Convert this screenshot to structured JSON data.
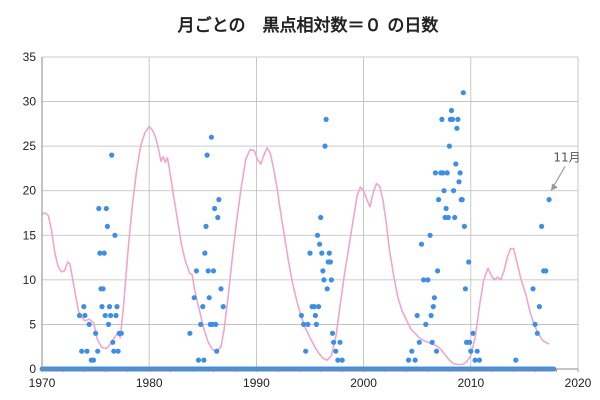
{
  "chart_data": {
    "type": "scatter",
    "title": "月ごとの　黒点相対数＝０ の日数",
    "xlabel": "",
    "ylabel": "",
    "xlim": [
      1970,
      2020
    ],
    "ylim": [
      0,
      35
    ],
    "x_ticks": [
      1970,
      1980,
      1990,
      2000,
      2010,
      2020
    ],
    "y_ticks": [
      0,
      5,
      10,
      15,
      20,
      25,
      30,
      35
    ],
    "grid": true,
    "legend": "none",
    "colors": {
      "points": "#3d8fe6",
      "line": "#f0a6cc",
      "grid": "#bbbbbb",
      "axis": "#888888"
    },
    "series": [
      {
        "type": "scatter",
        "points": [
          [
            1973.5,
            6
          ],
          [
            1973.7,
            2
          ],
          [
            1973.9,
            7
          ],
          [
            1974.0,
            6
          ],
          [
            1974.2,
            2
          ],
          [
            1974.4,
            5
          ],
          [
            1974.6,
            1
          ],
          [
            1974.8,
            1
          ],
          [
            1975.0,
            4
          ],
          [
            1975.2,
            2
          ],
          [
            1975.3,
            18
          ],
          [
            1975.4,
            13
          ],
          [
            1975.5,
            9
          ],
          [
            1975.6,
            7
          ],
          [
            1975.7,
            9
          ],
          [
            1975.8,
            13
          ],
          [
            1975.9,
            6
          ],
          [
            1976.0,
            18
          ],
          [
            1976.1,
            16
          ],
          [
            1976.2,
            5
          ],
          [
            1976.3,
            7
          ],
          [
            1976.4,
            6
          ],
          [
            1976.5,
            24
          ],
          [
            1976.6,
            3
          ],
          [
            1976.7,
            2
          ],
          [
            1976.8,
            15
          ],
          [
            1976.9,
            6
          ],
          [
            1977.0,
            7
          ],
          [
            1977.1,
            2
          ],
          [
            1977.2,
            4
          ],
          [
            1977.4,
            4
          ],
          [
            1983.8,
            4
          ],
          [
            1984.2,
            8
          ],
          [
            1984.4,
            11
          ],
          [
            1984.6,
            1
          ],
          [
            1984.8,
            5
          ],
          [
            1985.0,
            7
          ],
          [
            1985.1,
            1
          ],
          [
            1985.2,
            13
          ],
          [
            1985.3,
            16
          ],
          [
            1985.4,
            24
          ],
          [
            1985.5,
            11
          ],
          [
            1985.6,
            8
          ],
          [
            1985.7,
            5
          ],
          [
            1985.8,
            26
          ],
          [
            1985.9,
            5
          ],
          [
            1986.0,
            11
          ],
          [
            1986.1,
            18
          ],
          [
            1986.2,
            5
          ],
          [
            1986.3,
            2
          ],
          [
            1986.4,
            17
          ],
          [
            1986.5,
            19
          ],
          [
            1986.7,
            9
          ],
          [
            1986.9,
            7
          ],
          [
            1994.2,
            6
          ],
          [
            1994.4,
            5
          ],
          [
            1994.6,
            2
          ],
          [
            1994.8,
            5
          ],
          [
            1995.0,
            13
          ],
          [
            1995.2,
            7
          ],
          [
            1995.4,
            7
          ],
          [
            1995.5,
            6
          ],
          [
            1995.6,
            5
          ],
          [
            1995.7,
            15
          ],
          [
            1995.8,
            7
          ],
          [
            1995.9,
            14
          ],
          [
            1996.0,
            17
          ],
          [
            1996.1,
            13
          ],
          [
            1996.2,
            11
          ],
          [
            1996.3,
            10
          ],
          [
            1996.4,
            25
          ],
          [
            1996.5,
            28
          ],
          [
            1996.6,
            9
          ],
          [
            1996.7,
            12
          ],
          [
            1996.8,
            13
          ],
          [
            1996.9,
            12
          ],
          [
            1997.0,
            10
          ],
          [
            1997.1,
            4
          ],
          [
            1997.2,
            3
          ],
          [
            1997.4,
            2
          ],
          [
            1997.6,
            1
          ],
          [
            1997.8,
            3
          ],
          [
            1998.0,
            1
          ],
          [
            2004.2,
            1
          ],
          [
            2004.5,
            2
          ],
          [
            2004.8,
            1
          ],
          [
            2005.0,
            6
          ],
          [
            2005.2,
            3
          ],
          [
            2005.4,
            14
          ],
          [
            2005.6,
            10
          ],
          [
            2005.8,
            5
          ],
          [
            2006.0,
            10
          ],
          [
            2006.2,
            15
          ],
          [
            2006.3,
            6
          ],
          [
            2006.4,
            3
          ],
          [
            2006.5,
            7
          ],
          [
            2006.6,
            8
          ],
          [
            2006.7,
            22
          ],
          [
            2006.8,
            2
          ],
          [
            2006.9,
            11
          ],
          [
            2007.0,
            19
          ],
          [
            2007.2,
            22
          ],
          [
            2007.3,
            28
          ],
          [
            2007.4,
            22
          ],
          [
            2007.5,
            20
          ],
          [
            2007.6,
            17
          ],
          [
            2007.7,
            18
          ],
          [
            2007.8,
            22
          ],
          [
            2007.9,
            17
          ],
          [
            2008.0,
            25
          ],
          [
            2008.1,
            28
          ],
          [
            2008.2,
            29
          ],
          [
            2008.3,
            28
          ],
          [
            2008.4,
            20
          ],
          [
            2008.5,
            17
          ],
          [
            2008.6,
            23
          ],
          [
            2008.7,
            27
          ],
          [
            2008.8,
            28
          ],
          [
            2008.9,
            21
          ],
          [
            2009.0,
            22
          ],
          [
            2009.1,
            19
          ],
          [
            2009.2,
            19
          ],
          [
            2009.3,
            31
          ],
          [
            2009.4,
            16
          ],
          [
            2009.5,
            9
          ],
          [
            2009.6,
            3
          ],
          [
            2009.7,
            3
          ],
          [
            2009.8,
            12
          ],
          [
            2009.9,
            3
          ],
          [
            2010.0,
            2
          ],
          [
            2010.2,
            4
          ],
          [
            2010.4,
            1
          ],
          [
            2010.6,
            2
          ],
          [
            2010.8,
            1
          ],
          [
            2014.2,
            1
          ],
          [
            2015.8,
            9
          ],
          [
            2016.0,
            5
          ],
          [
            2016.2,
            4
          ],
          [
            2016.4,
            7
          ],
          [
            2016.6,
            16
          ],
          [
            2016.8,
            11
          ],
          [
            2017.0,
            11
          ],
          [
            2017.3,
            19
          ]
        ]
      },
      {
        "type": "line",
        "points": [
          [
            1970.0,
            17.4
          ],
          [
            1970.3,
            17.5
          ],
          [
            1970.6,
            17.2
          ],
          [
            1970.9,
            15.5
          ],
          [
            1971.2,
            13.0
          ],
          [
            1971.5,
            11.5
          ],
          [
            1971.8,
            10.9
          ],
          [
            1972.1,
            11.0
          ],
          [
            1972.4,
            12.0
          ],
          [
            1972.6,
            11.8
          ],
          [
            1972.8,
            10.5
          ],
          [
            1973.1,
            8.5
          ],
          [
            1973.4,
            6.5
          ],
          [
            1973.7,
            5.8
          ],
          [
            1974.0,
            5.4
          ],
          [
            1974.4,
            5.6
          ],
          [
            1974.8,
            5.2
          ],
          [
            1975.2,
            3.2
          ],
          [
            1975.6,
            2.4
          ],
          [
            1976.0,
            2.3
          ],
          [
            1976.4,
            2.8
          ],
          [
            1976.8,
            3.6
          ],
          [
            1977.1,
            4.0
          ],
          [
            1977.3,
            3.5
          ],
          [
            1977.6,
            7.0
          ],
          [
            1978.0,
            13.0
          ],
          [
            1978.4,
            18.0
          ],
          [
            1978.8,
            22.0
          ],
          [
            1979.2,
            25.0
          ],
          [
            1979.6,
            26.5
          ],
          [
            1980.0,
            27.2
          ],
          [
            1980.3,
            26.8
          ],
          [
            1980.6,
            26.0
          ],
          [
            1980.9,
            24.5
          ],
          [
            1981.1,
            23.3
          ],
          [
            1981.3,
            23.8
          ],
          [
            1981.5,
            23.2
          ],
          [
            1981.7,
            23.7
          ],
          [
            1981.9,
            22.3
          ],
          [
            1982.2,
            20.0
          ],
          [
            1982.6,
            17.0
          ],
          [
            1983.0,
            14.0
          ],
          [
            1983.4,
            12.0
          ],
          [
            1983.8,
            10.7
          ],
          [
            1984.0,
            10.6
          ],
          [
            1984.3,
            8.5
          ],
          [
            1984.7,
            6.5
          ],
          [
            1985.1,
            4.5
          ],
          [
            1985.5,
            3.0
          ],
          [
            1985.9,
            2.2
          ],
          [
            1986.3,
            2.0
          ],
          [
            1986.7,
            2.5
          ],
          [
            1987.0,
            4.5
          ],
          [
            1987.4,
            8.5
          ],
          [
            1987.8,
            13.0
          ],
          [
            1988.2,
            17.0
          ],
          [
            1988.6,
            20.5
          ],
          [
            1989.0,
            23.5
          ],
          [
            1989.4,
            24.6
          ],
          [
            1989.8,
            24.5
          ],
          [
            1990.1,
            23.5
          ],
          [
            1990.4,
            23.0
          ],
          [
            1990.7,
            24.0
          ],
          [
            1991.0,
            24.8
          ],
          [
            1991.3,
            24.2
          ],
          [
            1991.6,
            22.5
          ],
          [
            1991.9,
            20.5
          ],
          [
            1992.2,
            18.0
          ],
          [
            1992.6,
            15.0
          ],
          [
            1993.0,
            12.0
          ],
          [
            1993.4,
            9.5
          ],
          [
            1993.8,
            7.5
          ],
          [
            1994.2,
            5.8
          ],
          [
            1994.6,
            4.5
          ],
          [
            1995.0,
            3.5
          ],
          [
            1995.4,
            2.6
          ],
          [
            1995.8,
            1.8
          ],
          [
            1996.2,
            1.2
          ],
          [
            1996.6,
            1.0
          ],
          [
            1997.0,
            1.5
          ],
          [
            1997.4,
            3.5
          ],
          [
            1997.8,
            7.0
          ],
          [
            1998.2,
            10.5
          ],
          [
            1998.6,
            13.5
          ],
          [
            1999.0,
            16.5
          ],
          [
            1999.4,
            19.5
          ],
          [
            1999.7,
            20.4
          ],
          [
            2000.0,
            20.0
          ],
          [
            2000.3,
            19.0
          ],
          [
            2000.6,
            18.2
          ],
          [
            2000.9,
            19.8
          ],
          [
            2001.2,
            20.8
          ],
          [
            2001.5,
            20.5
          ],
          [
            2001.8,
            19.0
          ],
          [
            2002.1,
            16.5
          ],
          [
            2002.4,
            13.5
          ],
          [
            2002.8,
            10.5
          ],
          [
            2003.2,
            8.0
          ],
          [
            2003.6,
            6.5
          ],
          [
            2004.0,
            5.5
          ],
          [
            2004.4,
            4.5
          ],
          [
            2004.8,
            4.0
          ],
          [
            2005.2,
            3.5
          ],
          [
            2005.6,
            3.2
          ],
          [
            2006.0,
            3.0
          ],
          [
            2006.4,
            2.8
          ],
          [
            2006.8,
            2.6
          ],
          [
            2007.2,
            2.2
          ],
          [
            2007.6,
            1.6
          ],
          [
            2008.0,
            1.0
          ],
          [
            2008.4,
            0.6
          ],
          [
            2008.8,
            0.5
          ],
          [
            2009.2,
            0.5
          ],
          [
            2009.6,
            0.8
          ],
          [
            2010.0,
            1.5
          ],
          [
            2010.4,
            3.5
          ],
          [
            2010.8,
            7.0
          ],
          [
            2011.2,
            10.0
          ],
          [
            2011.6,
            11.3
          ],
          [
            2011.9,
            10.5
          ],
          [
            2012.2,
            10.0
          ],
          [
            2012.5,
            10.3
          ],
          [
            2012.8,
            10.0
          ],
          [
            2013.1,
            11.0
          ],
          [
            2013.4,
            12.5
          ],
          [
            2013.7,
            13.5
          ],
          [
            2014.0,
            13.5
          ],
          [
            2014.3,
            12.0
          ],
          [
            2014.7,
            10.0
          ],
          [
            2015.1,
            8.5
          ],
          [
            2015.5,
            6.5
          ],
          [
            2015.9,
            5.0
          ],
          [
            2016.3,
            4.0
          ],
          [
            2016.7,
            3.2
          ],
          [
            2017.0,
            3.0
          ],
          [
            2017.3,
            2.8
          ]
        ]
      }
    ],
    "annotations": [
      {
        "text": "11月",
        "target": [
          2017.3,
          19.8
        ]
      }
    ]
  }
}
